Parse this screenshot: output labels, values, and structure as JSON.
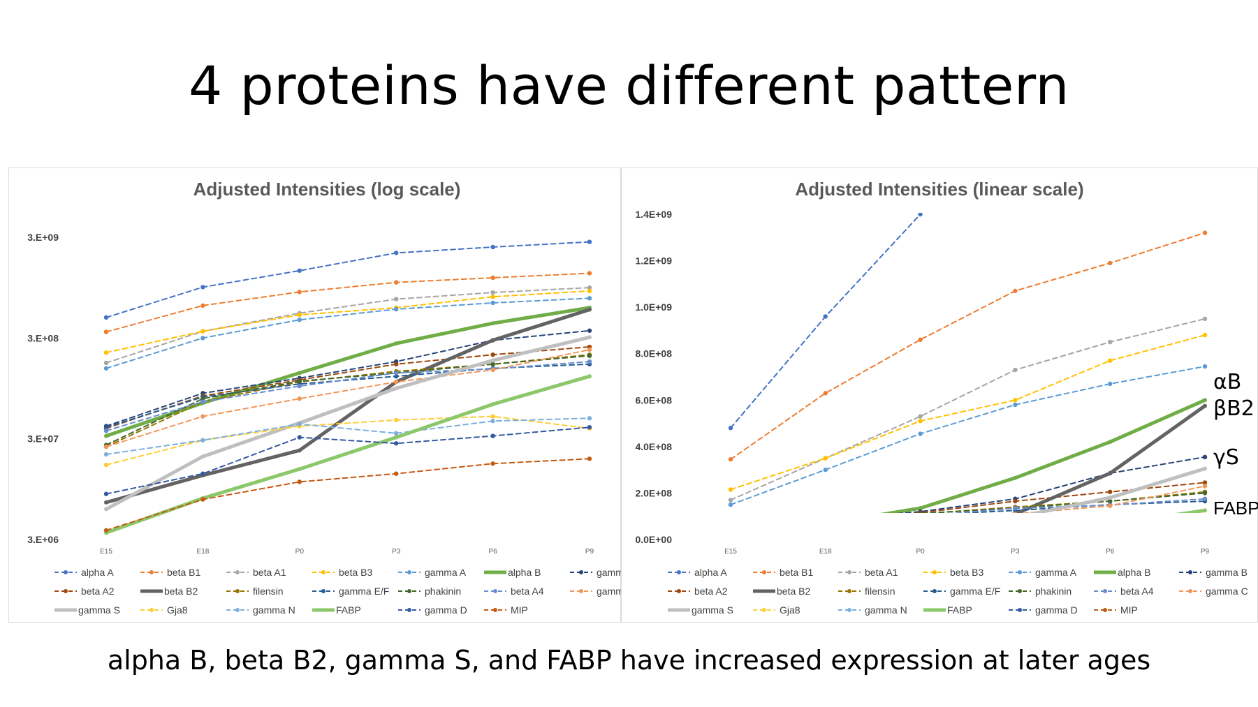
{
  "slide": {
    "title": "4 proteins have different pattern",
    "subtitle": "alpha B, beta B2, gamma S, and FABP have increased expression at later ages"
  },
  "chart_data": [
    {
      "type": "line",
      "title": "Adjusted Intensities (log scale)",
      "scale": "log",
      "categories": [
        "E15",
        "E18",
        "P0",
        "P3",
        "P6",
        "P9"
      ],
      "yticks": [
        "3.E+06",
        "3.E+07",
        "3.E+08",
        "3.E+09"
      ],
      "ylim": [
        3000000,
        3000000000
      ],
      "grid": false,
      "legend_position": "bottom",
      "series": [
        {
          "name": "alpha A",
          "color": "#4472C4",
          "style": "dashed",
          "values": [
            480000000,
            960000000,
            1400000000,
            2100000000,
            2400000000,
            2700000000
          ]
        },
        {
          "name": "beta B1",
          "color": "#ED7D31",
          "style": "dashed",
          "values": [
            345000000,
            630000000,
            860000000,
            1070000000,
            1190000000,
            1320000000
          ]
        },
        {
          "name": "beta A1",
          "color": "#A5A5A5",
          "style": "dashed",
          "values": [
            170000000,
            350000000,
            530000000,
            730000000,
            850000000,
            950000000
          ]
        },
        {
          "name": "beta B3",
          "color": "#FFC000",
          "style": "dashed",
          "values": [
            215000000,
            350000000,
            510000000,
            600000000,
            770000000,
            880000000
          ]
        },
        {
          "name": "gamma A",
          "color": "#5B9BD5",
          "style": "dashed",
          "values": [
            150000000,
            300000000,
            455000000,
            580000000,
            670000000,
            745000000
          ]
        },
        {
          "name": "alpha B",
          "color": "#70AD47",
          "style": "solid",
          "values": [
            32000000,
            68000000,
            135000000,
            265000000,
            420000000,
            600000000
          ]
        },
        {
          "name": "gamma B",
          "color": "#264478",
          "style": "dashed",
          "values": [
            40000000,
            85000000,
            120000000,
            175000000,
            285000000,
            355000000
          ]
        },
        {
          "name": "beta A2",
          "color": "#9E480E",
          "style": "dashed",
          "values": [
            38000000,
            80000000,
            115000000,
            165000000,
            205000000,
            245000000
          ]
        },
        {
          "name": "beta B2",
          "color": "#636363",
          "style": "solid",
          "values": [
            7000000,
            13000000,
            23000000,
            110000000,
            285000000,
            575000000
          ]
        },
        {
          "name": "filensin",
          "color": "#997300",
          "style": "dashed",
          "values": [
            25000000,
            70000000,
            110000000,
            140000000,
            165000000,
            205000000
          ]
        },
        {
          "name": "gamma E/F",
          "color": "#255E91",
          "style": "dashed",
          "values": [
            39000000,
            78000000,
            105000000,
            125000000,
            150000000,
            165000000
          ]
        },
        {
          "name": "phakinin",
          "color": "#43682B",
          "style": "dashed",
          "values": [
            26000000,
            75000000,
            112000000,
            135000000,
            165000000,
            200000000
          ]
        },
        {
          "name": "beta A4",
          "color": "#698ED0",
          "style": "dashed",
          "values": [
            36000000,
            70000000,
            100000000,
            135000000,
            148000000,
            175000000
          ]
        },
        {
          "name": "gamma C",
          "color": "#F1975A",
          "style": "dashed",
          "values": [
            25000000,
            50000000,
            75000000,
            110000000,
            145000000,
            230000000
          ]
        },
        {
          "name": "gamma S",
          "color": "#BFBFBF",
          "style": "solid",
          "values": [
            6000000,
            20000000,
            43000000,
            95000000,
            180000000,
            305000000
          ]
        },
        {
          "name": "Gja8",
          "color": "#FFCD33",
          "style": "dashed",
          "values": [
            16500000,
            29000000,
            40000000,
            46000000,
            50000000,
            38000000
          ]
        },
        {
          "name": "gamma N",
          "color": "#7CAFDD",
          "style": "dashed",
          "values": [
            21000000,
            29000000,
            42000000,
            34000000,
            45000000,
            48000000
          ]
        },
        {
          "name": "FABP",
          "color": "#8BC86A",
          "style": "solid",
          "values": [
            3500000,
            7700000,
            15000000,
            31000000,
            66000000,
            125000000
          ]
        },
        {
          "name": "gamma D",
          "color": "#335AA1",
          "style": "dashed",
          "values": [
            8500000,
            13500000,
            31000000,
            27000000,
            32000000,
            39000000
          ]
        },
        {
          "name": "MIP",
          "color": "#C55A11",
          "style": "dashed",
          "values": [
            3700000,
            7500000,
            11200000,
            13500000,
            17000000,
            19000000
          ]
        }
      ]
    },
    {
      "type": "line",
      "title": "Adjusted Intensities (linear scale)",
      "scale": "linear",
      "categories": [
        "E15",
        "E18",
        "P0",
        "P3",
        "P6",
        "P9"
      ],
      "yticks": [
        "0.0E+00",
        "2.0E+08",
        "4.0E+08",
        "6.0E+08",
        "8.0E+08",
        "1.0E+09",
        "1.2E+09",
        "1.4E+09"
      ],
      "ylim": [
        0,
        1400000000
      ],
      "grid": false,
      "legend_position": "bottom",
      "annotations": [
        "αB",
        "βB2",
        "γS",
        "FABP"
      ],
      "series_ref": "same data as log-scale chart"
    }
  ]
}
